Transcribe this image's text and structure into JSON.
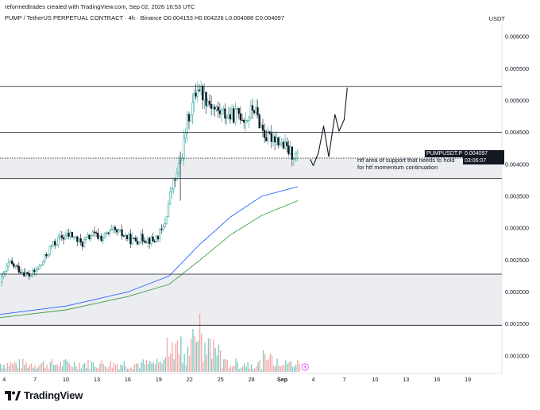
{
  "header": {
    "credit": "reformedtrades created with TradingView.com, Sep 02, 2026 16:53 UTC",
    "symbol_line": "PUMP / TetherUS PERPETUAL CONTRACT · 4h · Binance  O0.004153 H0.004226 L0.004088 C0.004097",
    "currency": "USDT"
  },
  "price_tags": {
    "symbol": "PUMPUSDT.P",
    "last_price": "0.004097",
    "countdown": "03:06:07"
  },
  "annotation": {
    "line1": "htf area of support that needs to hold",
    "line2": "for htf momentum continuation"
  },
  "brand": {
    "name": "TradingView"
  },
  "colors": {
    "up": "#26a69a",
    "down": "#131722",
    "ma_fast": "#2962ff",
    "ma_slow": "#43a047",
    "zone_fill": "#ebedf0",
    "grid_line": "#131722"
  },
  "chart_data": {
    "type": "candlestick",
    "title": "PUMP / TetherUS PERPETUAL CONTRACT · 4h · Binance",
    "y_ticks": [
      "0.006000",
      "0.005500",
      "0.005000",
      "0.004500",
      "0.004000",
      "0.003500",
      "0.003000",
      "0.002500",
      "0.002000",
      "0.001500",
      "0.001000"
    ],
    "ylim": [
      0.000725,
      0.0062
    ],
    "x_ticks": [
      {
        "label": "4",
        "day": 4
      },
      {
        "label": "7",
        "day": 7
      },
      {
        "label": "10",
        "day": 10
      },
      {
        "label": "13",
        "day": 13
      },
      {
        "label": "16",
        "day": 16
      },
      {
        "label": "19",
        "day": 19
      },
      {
        "label": "22",
        "day": 22
      },
      {
        "label": "25",
        "day": 25
      },
      {
        "label": "28",
        "day": 28
      },
      {
        "label": "Sep",
        "day": 31
      },
      {
        "label": "4",
        "day": 34
      },
      {
        "label": "7",
        "day": 37
      },
      {
        "label": "10",
        "day": 40
      },
      {
        "label": "13",
        "day": 43
      },
      {
        "label": "16",
        "day": 46
      },
      {
        "label": "19",
        "day": 49
      }
    ],
    "xlim_days": [
      3.6,
      52.3
    ],
    "horizontal_levels": [
      0.00522,
      0.0045,
      0.004097,
      0.00378,
      0.00228,
      0.00148
    ],
    "support_zones": [
      [
        0.00378,
        0.004097
      ],
      [
        0.00148,
        0.00228
      ]
    ],
    "close_path": [
      [
        3.6,
        0.00215
      ],
      [
        4.5,
        0.00245
      ],
      [
        5.5,
        0.00235
      ],
      [
        6.5,
        0.00225
      ],
      [
        7.5,
        0.0024
      ],
      [
        8.5,
        0.0027
      ],
      [
        9.5,
        0.00285
      ],
      [
        10.5,
        0.0029
      ],
      [
        11.5,
        0.00275
      ],
      [
        12.5,
        0.0029
      ],
      [
        13.5,
        0.00285
      ],
      [
        14.5,
        0.00295
      ],
      [
        15.5,
        0.0029
      ],
      [
        16.5,
        0.0028
      ],
      [
        17.5,
        0.00285
      ],
      [
        18.5,
        0.0028
      ],
      [
        19.5,
        0.003
      ],
      [
        20.2,
        0.0036
      ],
      [
        20.8,
        0.00385
      ],
      [
        21.3,
        0.0042
      ],
      [
        21.8,
        0.0047
      ],
      [
        22.3,
        0.00495
      ],
      [
        22.8,
        0.00525
      ],
      [
        23.3,
        0.0051
      ],
      [
        23.8,
        0.005
      ],
      [
        24.5,
        0.00485
      ],
      [
        25.2,
        0.0048
      ],
      [
        26.0,
        0.00475
      ],
      [
        26.8,
        0.0048
      ],
      [
        27.5,
        0.0047
      ],
      [
        28.2,
        0.0049
      ],
      [
        28.8,
        0.00465
      ],
      [
        29.5,
        0.0044
      ],
      [
        30.2,
        0.00445
      ],
      [
        31.0,
        0.0043
      ],
      [
        31.8,
        0.00418
      ],
      [
        32.6,
        0.0041
      ]
    ],
    "projection_path": [
      [
        33.7,
        0.00408
      ],
      [
        34.0,
        0.00398
      ],
      [
        34.5,
        0.00418
      ],
      [
        35.0,
        0.0046
      ],
      [
        35.5,
        0.00412
      ],
      [
        36.1,
        0.00478
      ],
      [
        36.5,
        0.00452
      ],
      [
        37.0,
        0.0047
      ],
      [
        37.3,
        0.0052
      ]
    ],
    "ma_fast": [
      [
        3.6,
        0.00165
      ],
      [
        10,
        0.00178
      ],
      [
        16,
        0.002
      ],
      [
        20,
        0.00225
      ],
      [
        23,
        0.00275
      ],
      [
        26,
        0.00318
      ],
      [
        29,
        0.0035
      ],
      [
        32.5,
        0.00365
      ]
    ],
    "ma_slow": [
      [
        3.6,
        0.0016
      ],
      [
        10,
        0.00172
      ],
      [
        16,
        0.00193
      ],
      [
        20,
        0.00212
      ],
      [
        23,
        0.0025
      ],
      [
        26,
        0.0029
      ],
      [
        29,
        0.0032
      ],
      [
        32.5,
        0.00343
      ]
    ]
  }
}
